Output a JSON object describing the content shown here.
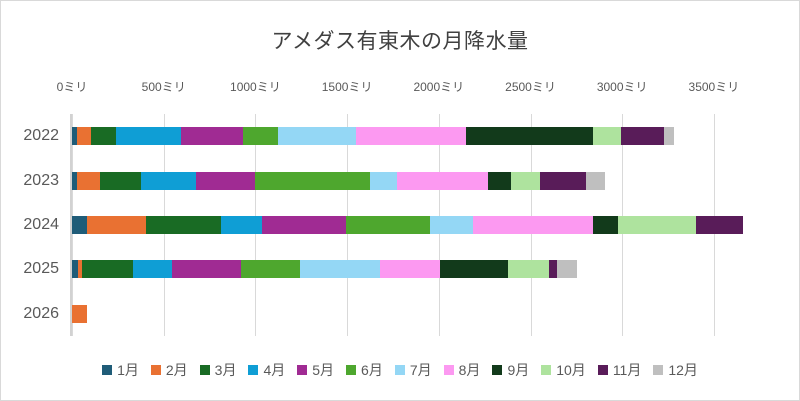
{
  "title": "アメダス有東木の月降水量",
  "x_axis": {
    "tick_labels": [
      "0ミリ",
      "500ミリ",
      "1000ミリ",
      "1500ミリ",
      "2000ミリ",
      "2500ミリ",
      "3000ミリ",
      "3500ミリ"
    ],
    "tick_values": [
      0,
      500,
      1000,
      1500,
      2000,
      2500,
      3000,
      3500
    ]
  },
  "chart_data": {
    "type": "bar",
    "orientation": "horizontal",
    "stacked": true,
    "title": "アメダス有東木の月降水量",
    "unit": "ミリ",
    "categories": [
      "2022",
      "2023",
      "2024",
      "2025",
      "2026"
    ],
    "series": [
      {
        "name": "1月",
        "color": "#1F5C78",
        "values": [
          25,
          25,
          80,
          35,
          0
        ]
      },
      {
        "name": "2月",
        "color": "#E97132",
        "values": [
          80,
          130,
          325,
          20,
          80
        ]
      },
      {
        "name": "3月",
        "color": "#196B24",
        "values": [
          135,
          220,
          410,
          275,
          0
        ]
      },
      {
        "name": "4月",
        "color": "#0F9ED5",
        "values": [
          355,
          300,
          220,
          215,
          0
        ]
      },
      {
        "name": "5月",
        "color": "#A02B93",
        "values": [
          340,
          325,
          460,
          375,
          0
        ]
      },
      {
        "name": "6月",
        "color": "#4EA72E",
        "values": [
          190,
          625,
          455,
          325,
          0
        ]
      },
      {
        "name": "7月",
        "color": "#94D7F5",
        "values": [
          425,
          145,
          235,
          435,
          0
        ]
      },
      {
        "name": "8月",
        "color": "#FC99F1",
        "values": [
          600,
          500,
          655,
          325,
          0
        ]
      },
      {
        "name": "9月",
        "color": "#123A1B",
        "values": [
          690,
          125,
          135,
          375,
          0
        ]
      },
      {
        "name": "10月",
        "color": "#AEE39E",
        "values": [
          155,
          155,
          425,
          220,
          0
        ]
      },
      {
        "name": "11月",
        "color": "#591C59",
        "values": [
          235,
          255,
          260,
          45,
          0
        ]
      },
      {
        "name": "12月",
        "color": "#BFBFBF",
        "values": [
          50,
          100,
          0,
          110,
          0
        ]
      }
    ],
    "totals": [
      3280,
      2905,
      3660,
      2755,
      80
    ],
    "xlim": [
      0,
      3762
    ],
    "grid": true,
    "legend_position": "bottom",
    "axis_labels_position": "top"
  },
  "colors": {
    "title_text": "#404040",
    "axis_text": "#595959",
    "gridline": "#D9D9D9",
    "chart_border": "#D9D9D9",
    "background": "#FFFFFF"
  }
}
